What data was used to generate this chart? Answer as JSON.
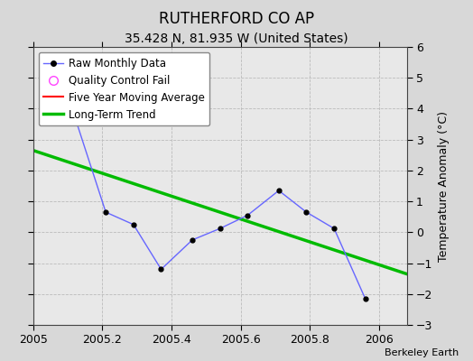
{
  "title": "RUTHERFORD CO AP",
  "subtitle": "35.428 N, 81.935 W (United States)",
  "credit": "Berkeley Earth",
  "ylabel": "Temperature Anomaly (°C)",
  "xlim": [
    2005.0,
    2006.08
  ],
  "ylim": [
    -3,
    6
  ],
  "yticks": [
    -3,
    -2,
    -1,
    0,
    1,
    2,
    3,
    4,
    5,
    6
  ],
  "xticks": [
    2005.0,
    2005.2,
    2005.4,
    2005.6,
    2005.8,
    2006.0
  ],
  "background_color": "#d8d8d8",
  "plot_background_color": "#e8e8e8",
  "raw_x": [
    2005.04,
    2005.12,
    2005.21,
    2005.29,
    2005.37,
    2005.46,
    2005.54,
    2005.62,
    2005.71,
    2005.79,
    2005.87,
    2005.96
  ],
  "raw_y": [
    3.75,
    3.75,
    0.65,
    0.25,
    -1.2,
    -0.25,
    0.12,
    0.55,
    1.35,
    0.65,
    0.12,
    -2.15
  ],
  "qc_fail_x": [
    2005.12
  ],
  "qc_fail_y": [
    3.75
  ],
  "trend_x": [
    2005.0,
    2006.08
  ],
  "trend_y": [
    2.65,
    -1.35
  ],
  "raw_line_color": "#6666ff",
  "raw_marker_color": "#000000",
  "qc_color": "#ff44ff",
  "trend_color": "#00bb00",
  "moving_avg_color": "#ff0000",
  "legend_loc": "upper left",
  "title_fontsize": 12,
  "subtitle_fontsize": 10,
  "tick_fontsize": 9,
  "legend_fontsize": 8.5
}
